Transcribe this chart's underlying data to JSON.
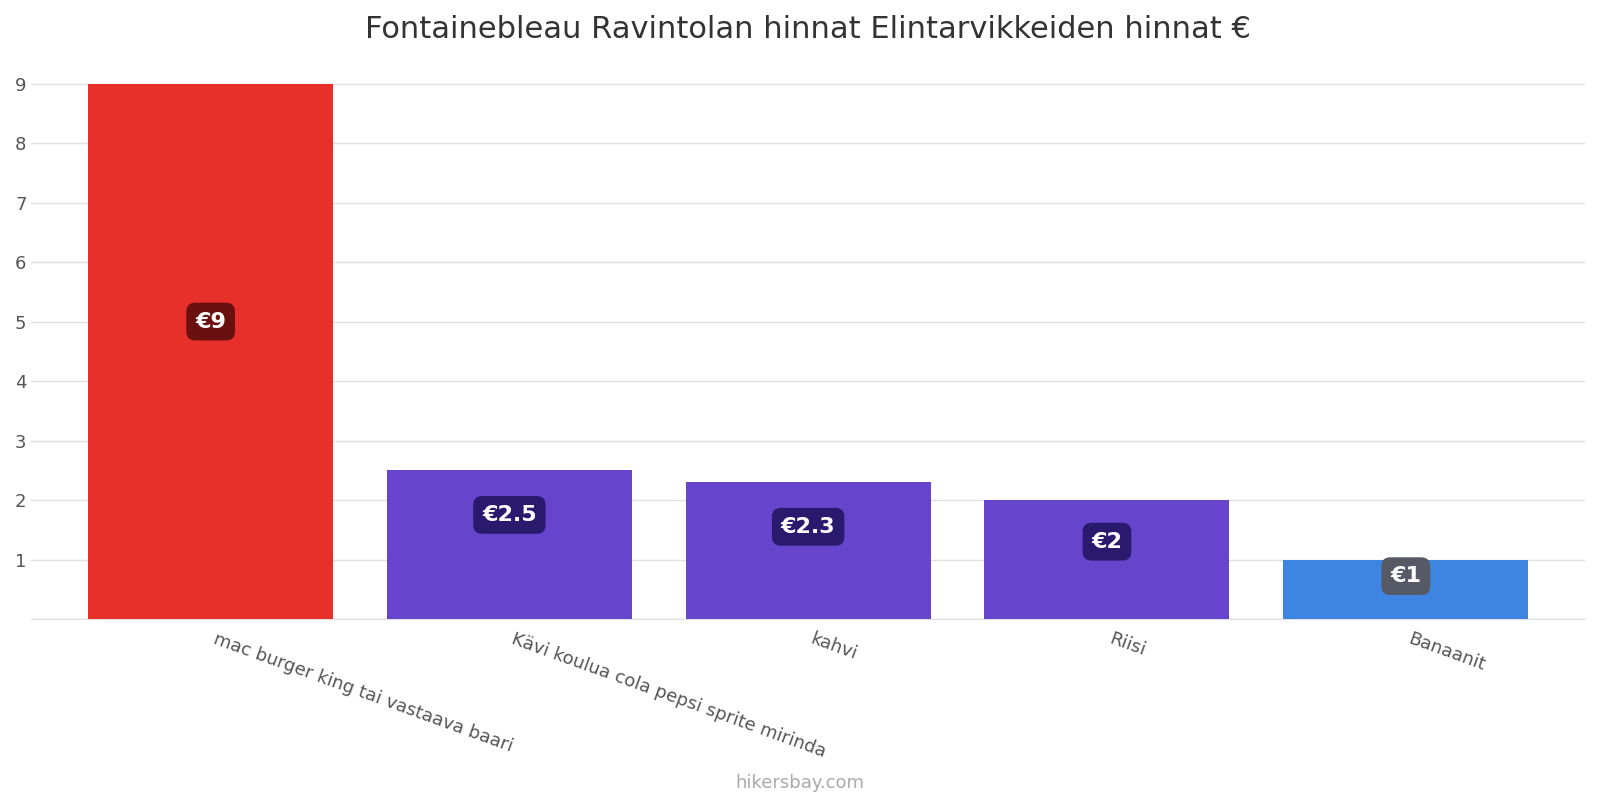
{
  "title": "Fontainebleau Ravintolan hinnat Elintarvikkeiden hinnat €",
  "categories": [
    "mac burger king tai vastaava baari",
    "Kävi koulua cola pepsi sprite mirinda",
    "kahvi",
    "Riisi",
    "Banaanit"
  ],
  "values": [
    9,
    2.5,
    2.3,
    2,
    1
  ],
  "bar_colors": [
    "#e8302a",
    "#6644cc",
    "#6644cc",
    "#6644cc",
    "#3d85e0"
  ],
  "label_bg_colors": [
    "#6b1010",
    "#2a1a6e",
    "#2a1a6e",
    "#2a1a6e",
    "#555a66"
  ],
  "labels": [
    "€9",
    "€2.5",
    "€2.3",
    "€2",
    "€1"
  ],
  "label_y_positions": [
    5.0,
    1.75,
    1.55,
    1.3,
    0.72
  ],
  "ylim": [
    0,
    9.3
  ],
  "yticks": [
    0,
    1,
    2,
    3,
    4,
    5,
    6,
    7,
    8,
    9
  ],
  "footer_text": "hikersbay.com",
  "title_fontsize": 22,
  "label_fontsize": 16,
  "axis_fontsize": 13,
  "footer_fontsize": 13,
  "background_color": "#ffffff",
  "grid_color": "#e0e0e0",
  "text_color": "#555555",
  "footer_color": "#aaaaaa",
  "bar_width": 0.82,
  "x_positions": [
    0,
    1,
    2,
    3,
    4
  ]
}
